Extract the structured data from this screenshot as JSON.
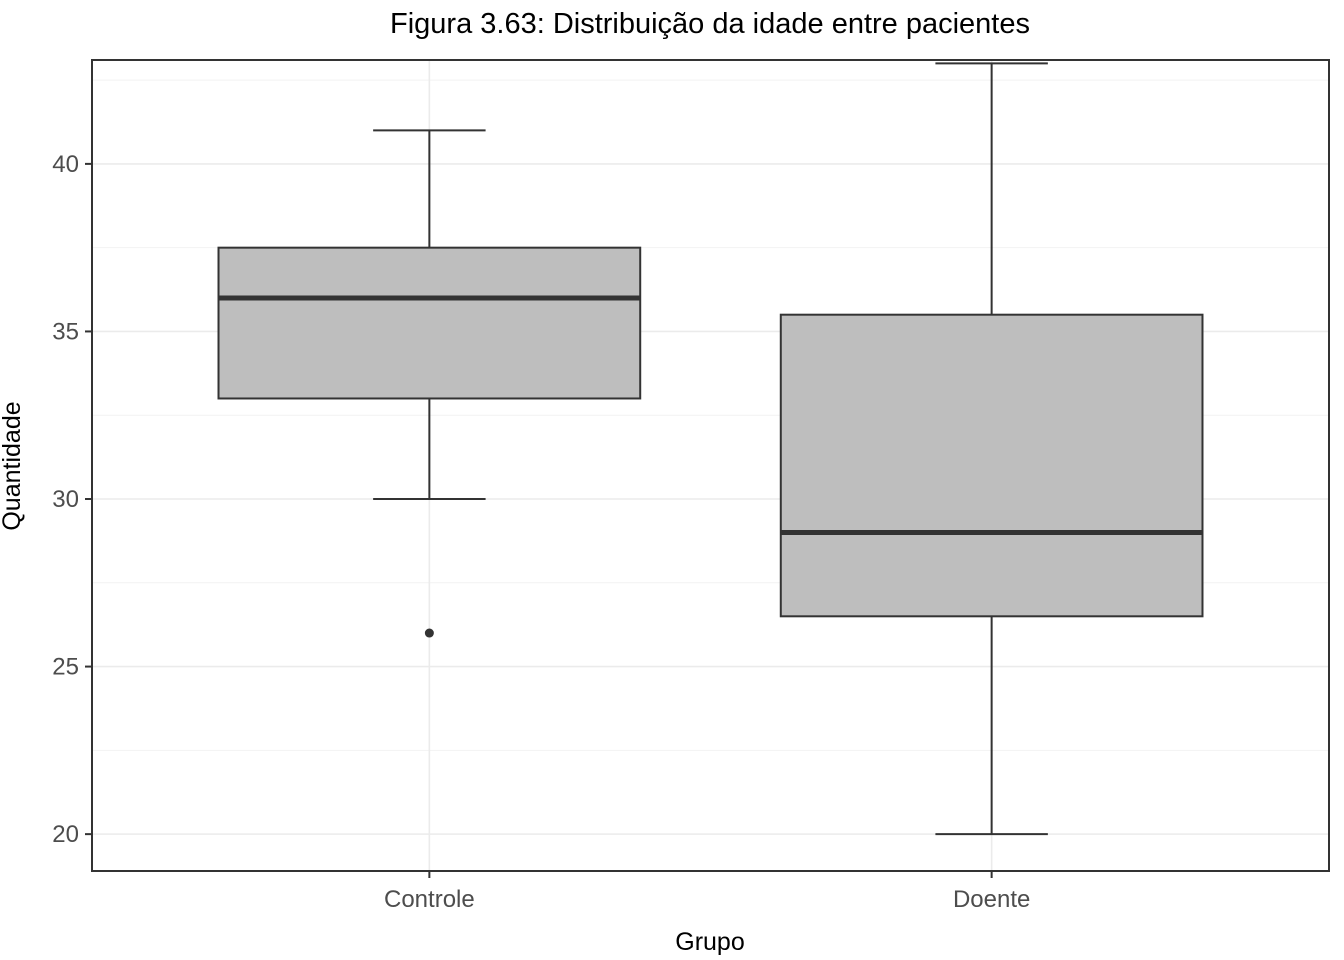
{
  "chart_data": {
    "type": "boxplot",
    "title": "Figura 3.63: Distribuição da idade entre pacientes",
    "xlabel": "Grupo",
    "ylabel": "Quantidade",
    "ylim": [
      18.9,
      43.1
    ],
    "yticks": [
      20,
      25,
      30,
      35,
      40
    ],
    "grid": true,
    "box_fill": "#bebebe",
    "line_color": "#333333",
    "categories": [
      "Controle",
      "Doente"
    ],
    "boxes": [
      {
        "category": "Controle",
        "min": 30,
        "q1": 33,
        "median": 36,
        "q3": 37.5,
        "max": 41,
        "outliers": [
          26
        ]
      },
      {
        "category": "Doente",
        "min": 20,
        "q1": 26.5,
        "median": 29,
        "q3": 35.5,
        "max": 43,
        "outliers": []
      }
    ]
  }
}
